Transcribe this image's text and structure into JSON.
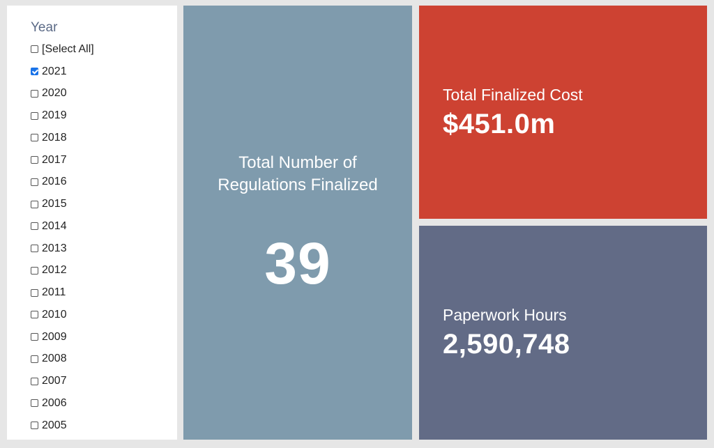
{
  "filter": {
    "title": "Year",
    "items": [
      {
        "label": "[Select All]",
        "checked": false
      },
      {
        "label": "2021",
        "checked": true
      },
      {
        "label": "2020",
        "checked": false
      },
      {
        "label": "2019",
        "checked": false
      },
      {
        "label": "2018",
        "checked": false
      },
      {
        "label": "2017",
        "checked": false
      },
      {
        "label": "2016",
        "checked": false
      },
      {
        "label": "2015",
        "checked": false
      },
      {
        "label": "2014",
        "checked": false
      },
      {
        "label": "2013",
        "checked": false
      },
      {
        "label": "2012",
        "checked": false
      },
      {
        "label": "2011",
        "checked": false
      },
      {
        "label": "2010",
        "checked": false
      },
      {
        "label": "2009",
        "checked": false
      },
      {
        "label": "2008",
        "checked": false
      },
      {
        "label": "2007",
        "checked": false
      },
      {
        "label": "2006",
        "checked": false
      },
      {
        "label": "2005",
        "checked": false
      }
    ]
  },
  "tiles": {
    "regulations": {
      "label": "Total Number of Regulations Finalized",
      "value": "39",
      "color": "#7f9bad"
    },
    "cost": {
      "label": "Total Finalized Cost",
      "value": "$451.0m",
      "color": "#cd4232"
    },
    "paperwork": {
      "label": "Paperwork Hours",
      "value": "2,590,748",
      "color": "#626b86"
    }
  },
  "colors": {
    "background": "#e6e6e6",
    "checkbox_checked": "#1a73e8",
    "filter_title": "#5b6a86"
  }
}
